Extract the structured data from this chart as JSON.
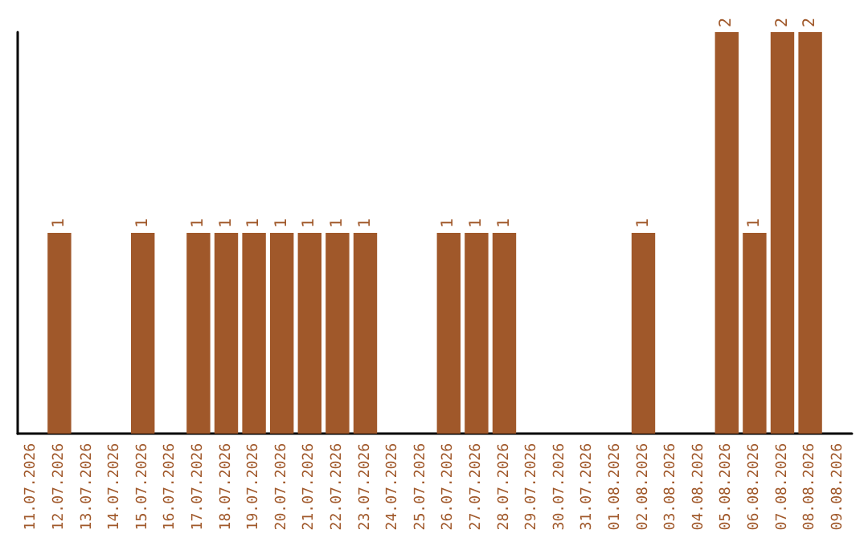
{
  "chart_data": {
    "type": "bar",
    "categories": [
      "11.07.2026",
      "12.07.2026",
      "13.07.2026",
      "14.07.2026",
      "15.07.2026",
      "16.07.2026",
      "17.07.2026",
      "18.07.2026",
      "19.07.2026",
      "20.07.2026",
      "21.07.2026",
      "22.07.2026",
      "23.07.2026",
      "24.07.2026",
      "25.07.2026",
      "26.07.2026",
      "27.07.2026",
      "28.07.2026",
      "29.07.2026",
      "30.07.2026",
      "31.07.2026",
      "01.08.2026",
      "02.08.2026",
      "03.08.2026",
      "04.08.2026",
      "05.08.2026",
      "06.08.2026",
      "07.08.2026",
      "08.08.2026",
      "09.08.2026"
    ],
    "values": [
      0,
      1,
      0,
      0,
      1,
      0,
      1,
      1,
      1,
      1,
      1,
      1,
      1,
      0,
      0,
      1,
      1,
      1,
      0,
      0,
      0,
      0,
      1,
      0,
      0,
      2,
      1,
      2,
      2,
      0
    ],
    "value_labels": [
      null,
      "1",
      null,
      null,
      "1",
      null,
      "1",
      "1",
      "1",
      "1",
      "1",
      "1",
      "1",
      null,
      null,
      "1",
      "1",
      "1",
      null,
      null,
      null,
      null,
      "1",
      null,
      null,
      "2",
      "1",
      "2",
      "2",
      null
    ],
    "color": "#a0582a",
    "ylim": [
      0,
      2
    ],
    "tick_labels": "x"
  }
}
